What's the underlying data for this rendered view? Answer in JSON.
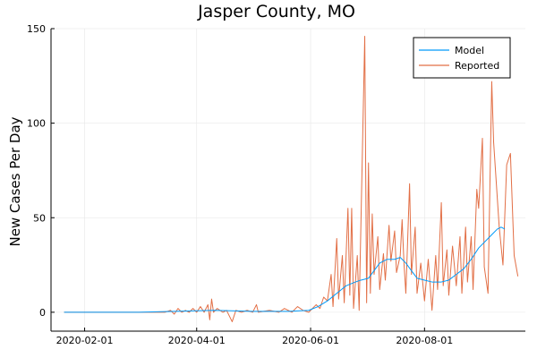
{
  "chart_data": {
    "type": "line",
    "title": "Jasper County, MO",
    "xlabel": "",
    "ylabel": "New Cases Per Day",
    "x_type": "date",
    "xlim": [
      "2020-01-14",
      "2020-09-24"
    ],
    "ylim": [
      -10,
      150
    ],
    "x_ticks": [
      "2020-02-01",
      "2020-04-01",
      "2020-06-01",
      "2020-08-01"
    ],
    "y_ticks": [
      0,
      50,
      100,
      150
    ],
    "grid": true,
    "legend_position": "top-right",
    "series": [
      {
        "name": "Model",
        "color": "#009AFA",
        "points": [
          [
            "2020-01-21",
            0
          ],
          [
            "2020-03-01",
            0
          ],
          [
            "2020-03-20",
            0.5
          ],
          [
            "2020-04-10",
            1
          ],
          [
            "2020-05-01",
            0.5
          ],
          [
            "2020-05-20",
            0.5
          ],
          [
            "2020-05-31",
            1
          ],
          [
            "2020-06-05",
            3
          ],
          [
            "2020-06-10",
            6
          ],
          [
            "2020-06-15",
            10
          ],
          [
            "2020-06-20",
            14
          ],
          [
            "2020-06-25",
            16
          ],
          [
            "2020-06-28",
            17
          ],
          [
            "2020-07-02",
            18
          ],
          [
            "2020-07-05",
            22
          ],
          [
            "2020-07-08",
            26
          ],
          [
            "2020-07-12",
            28
          ],
          [
            "2020-07-16",
            28
          ],
          [
            "2020-07-19",
            29
          ],
          [
            "2020-07-22",
            26
          ],
          [
            "2020-07-25",
            22
          ],
          [
            "2020-07-28",
            18
          ],
          [
            "2020-08-01",
            17
          ],
          [
            "2020-08-05",
            16
          ],
          [
            "2020-08-10",
            16
          ],
          [
            "2020-08-14",
            17
          ],
          [
            "2020-08-18",
            20
          ],
          [
            "2020-08-22",
            23
          ],
          [
            "2020-08-26",
            28
          ],
          [
            "2020-08-30",
            34
          ],
          [
            "2020-09-03",
            38
          ],
          [
            "2020-09-06",
            41
          ],
          [
            "2020-09-09",
            44
          ],
          [
            "2020-09-11",
            45
          ],
          [
            "2020-09-13",
            44
          ]
        ]
      },
      {
        "name": "Reported",
        "color": "#E26F46",
        "points": [
          [
            "2020-01-21",
            0
          ],
          [
            "2020-03-15",
            0
          ],
          [
            "2020-03-18",
            1
          ],
          [
            "2020-03-20",
            -1
          ],
          [
            "2020-03-22",
            2
          ],
          [
            "2020-03-24",
            0
          ],
          [
            "2020-03-26",
            1
          ],
          [
            "2020-03-28",
            0
          ],
          [
            "2020-03-30",
            2
          ],
          [
            "2020-04-01",
            0
          ],
          [
            "2020-04-03",
            3
          ],
          [
            "2020-04-05",
            0
          ],
          [
            "2020-04-07",
            4
          ],
          [
            "2020-04-08",
            -4
          ],
          [
            "2020-04-09",
            7
          ],
          [
            "2020-04-10",
            0
          ],
          [
            "2020-04-12",
            2
          ],
          [
            "2020-04-15",
            0
          ],
          [
            "2020-04-17",
            1
          ],
          [
            "2020-04-20",
            -5
          ],
          [
            "2020-04-22",
            1
          ],
          [
            "2020-04-25",
            0
          ],
          [
            "2020-04-28",
            1
          ],
          [
            "2020-05-01",
            0
          ],
          [
            "2020-05-03",
            4
          ],
          [
            "2020-05-04",
            0
          ],
          [
            "2020-05-10",
            1
          ],
          [
            "2020-05-15",
            0
          ],
          [
            "2020-05-18",
            2
          ],
          [
            "2020-05-22",
            0
          ],
          [
            "2020-05-25",
            3
          ],
          [
            "2020-05-28",
            1
          ],
          [
            "2020-05-31",
            0
          ],
          [
            "2020-06-02",
            2
          ],
          [
            "2020-06-04",
            4
          ],
          [
            "2020-06-06",
            2
          ],
          [
            "2020-06-08",
            8
          ],
          [
            "2020-06-10",
            6
          ],
          [
            "2020-06-12",
            20
          ],
          [
            "2020-06-13",
            3
          ],
          [
            "2020-06-15",
            39
          ],
          [
            "2020-06-16",
            7
          ],
          [
            "2020-06-18",
            30
          ],
          [
            "2020-06-19",
            5
          ],
          [
            "2020-06-21",
            55
          ],
          [
            "2020-06-22",
            9
          ],
          [
            "2020-06-23",
            55
          ],
          [
            "2020-06-24",
            2
          ],
          [
            "2020-06-26",
            30
          ],
          [
            "2020-06-27",
            1
          ],
          [
            "2020-06-30",
            146
          ],
          [
            "2020-07-01",
            5
          ],
          [
            "2020-07-02",
            79
          ],
          [
            "2020-07-03",
            10
          ],
          [
            "2020-07-04",
            52
          ],
          [
            "2020-07-05",
            20
          ],
          [
            "2020-07-07",
            40
          ],
          [
            "2020-07-08",
            12
          ],
          [
            "2020-07-10",
            31
          ],
          [
            "2020-07-11",
            17
          ],
          [
            "2020-07-13",
            46
          ],
          [
            "2020-07-14",
            27
          ],
          [
            "2020-07-16",
            43
          ],
          [
            "2020-07-17",
            21
          ],
          [
            "2020-07-19",
            30
          ],
          [
            "2020-07-20",
            49
          ],
          [
            "2020-07-21",
            26
          ],
          [
            "2020-07-22",
            10
          ],
          [
            "2020-07-24",
            68
          ],
          [
            "2020-07-25",
            20
          ],
          [
            "2020-07-27",
            45
          ],
          [
            "2020-07-28",
            10
          ],
          [
            "2020-07-30",
            26
          ],
          [
            "2020-08-01",
            6
          ],
          [
            "2020-08-03",
            28
          ],
          [
            "2020-08-05",
            1
          ],
          [
            "2020-08-07",
            30
          ],
          [
            "2020-08-08",
            12
          ],
          [
            "2020-08-10",
            58
          ],
          [
            "2020-08-11",
            14
          ],
          [
            "2020-08-13",
            33
          ],
          [
            "2020-08-14",
            9
          ],
          [
            "2020-08-16",
            35
          ],
          [
            "2020-08-18",
            14
          ],
          [
            "2020-08-20",
            40
          ],
          [
            "2020-08-21",
            10
          ],
          [
            "2020-08-23",
            45
          ],
          [
            "2020-08-24",
            16
          ],
          [
            "2020-08-26",
            40
          ],
          [
            "2020-08-27",
            12
          ],
          [
            "2020-08-29",
            65
          ],
          [
            "2020-08-30",
            55
          ],
          [
            "2020-09-01",
            92
          ],
          [
            "2020-09-02",
            24
          ],
          [
            "2020-09-04",
            10
          ],
          [
            "2020-09-06",
            122
          ],
          [
            "2020-09-07",
            90
          ],
          [
            "2020-09-08",
            75
          ],
          [
            "2020-09-10",
            45
          ],
          [
            "2020-09-12",
            25
          ],
          [
            "2020-09-14",
            78
          ],
          [
            "2020-09-16",
            84
          ],
          [
            "2020-09-18",
            30
          ],
          [
            "2020-09-20",
            19
          ]
        ]
      }
    ]
  }
}
